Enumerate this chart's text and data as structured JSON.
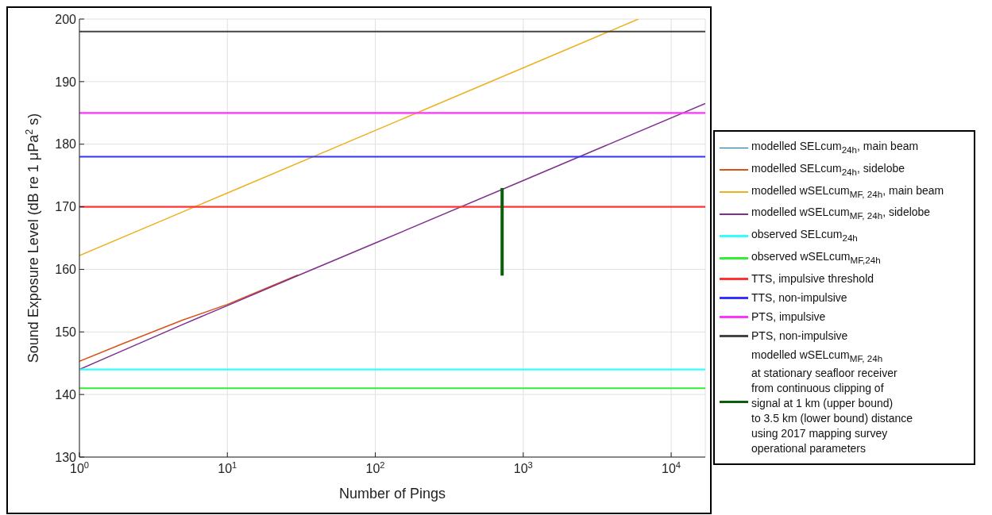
{
  "chart_data": {
    "type": "line",
    "xlabel": "Number of Pings",
    "ylabel": "Sound Exposure Level (dB re 1 μPa$^{2}$ s)",
    "log": "x",
    "xlim": [
      1,
      17000
    ],
    "xticks": [
      {
        "value": 1,
        "label": "10$^{0}$"
      },
      {
        "value": 10,
        "label": "10$^{1}$"
      },
      {
        "value": 100,
        "label": "10$^{2}$"
      },
      {
        "value": 1000,
        "label": "10$^{3}$"
      },
      {
        "value": 10000,
        "label": "10$^{4}$"
      }
    ],
    "ylim": [
      130,
      200
    ],
    "yticks": [
      130,
      140,
      150,
      160,
      170,
      180,
      190,
      200
    ],
    "grid": true,
    "legend": "right",
    "line_style": "solid",
    "marker": "none",
    "series": [
      {
        "name": "modelled SELcum$_{24h}$, main beam",
        "color": "#0072bd"
      },
      {
        "name": "modelled SELcum$_{24h}$, sidelobe",
        "color": "#d95319",
        "x": [
          1,
          2,
          5,
          10,
          30
        ],
        "values": [
          145.3,
          148.2,
          151.9,
          154.4,
          159.1
        ]
      },
      {
        "name": "modelled wSELcum$_{MF, 24h}$, main beam",
        "color": "#edb120",
        "x": [
          1,
          10,
          100,
          1000,
          6000
        ],
        "values": [
          162.2,
          172.2,
          182.2,
          192.2,
          200
        ]
      },
      {
        "name": "modelled wSELcum$_{MF, 24h}$, sidelobe",
        "color": "#7e2f8e",
        "x": [
          1,
          2,
          5,
          10,
          30,
          100,
          1000,
          17000
        ],
        "values": [
          144,
          147.1,
          151.2,
          154.2,
          159,
          164.2,
          174.2,
          186.5
        ]
      },
      {
        "name": "observed SELcum$_{24h}$",
        "color": "#33ffff",
        "x": [
          1,
          17000
        ],
        "values": [
          144,
          144
        ]
      },
      {
        "name": "observed wSELcum$_{MF,24h}$",
        "color": "#33ee33",
        "x": [
          1,
          17000
        ],
        "values": [
          141,
          141
        ]
      },
      {
        "name": "TTS, impulsive threshold",
        "color": "#ff3333",
        "x": [
          1,
          17000
        ],
        "values": [
          170,
          170
        ]
      },
      {
        "name": "TTS, non-impulsive",
        "color": "#3333ff",
        "x": [
          1,
          17000
        ],
        "values": [
          178,
          178
        ]
      },
      {
        "name": "PTS, impulsive",
        "color": "#ff33ff",
        "x": [
          1,
          17000
        ],
        "values": [
          185,
          185
        ]
      },
      {
        "name": "PTS, non-impulsive",
        "color": "#444444",
        "x": [
          1,
          17000
        ],
        "values": [
          198,
          198
        ]
      },
      {
        "name": "modelled wSELcum$_{MF, 24h}$\nat stationary seafloor receiver\n from continuous clipping of\nsignal at 1 km (upper bound)\n to 3.5 km (lower bound) distance\nusing 2017 mapping survey\noperational parameters",
        "color": "#0b5e0b",
        "x": [
          720,
          720
        ],
        "values": [
          159,
          173
        ]
      }
    ]
  }
}
